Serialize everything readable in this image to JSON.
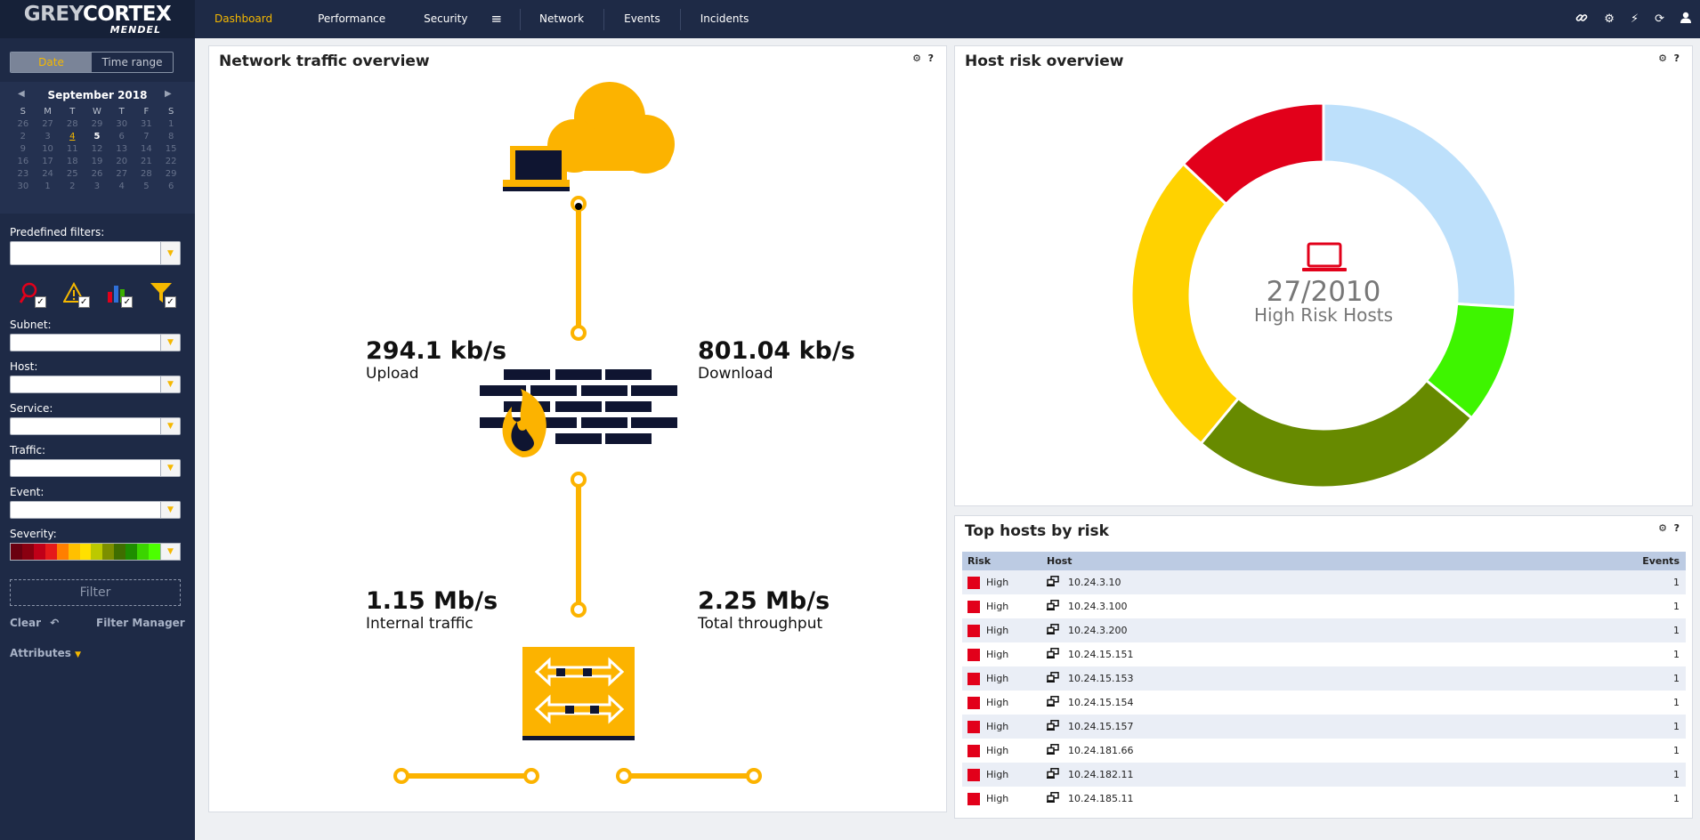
{
  "brand": {
    "line1_a": "GREY",
    "line1_b": "CORTEX",
    "line2": "MENDEL"
  },
  "nav": {
    "items": [
      "Dashboard",
      "Performance",
      "Security",
      "Network",
      "Events",
      "Incidents"
    ],
    "active": "Dashboard",
    "menu_icon": "hamburger-icon",
    "right_icons": [
      "link-icon",
      "settings-icon",
      "lightning-icon",
      "refresh-icon",
      "user-icon"
    ]
  },
  "sidebar": {
    "date_toggle": {
      "date": "Date",
      "time_range": "Time range",
      "active": "Date"
    },
    "calendar": {
      "month": "September 2018",
      "weekdays": [
        "S",
        "M",
        "T",
        "W",
        "T",
        "F",
        "S"
      ],
      "days": [
        "26",
        "27",
        "28",
        "29",
        "30",
        "31",
        "1",
        "2",
        "3",
        "4",
        "5",
        "6",
        "7",
        "8",
        "9",
        "10",
        "11",
        "12",
        "13",
        "14",
        "15",
        "16",
        "17",
        "18",
        "19",
        "20",
        "21",
        "22",
        "23",
        "24",
        "25",
        "26",
        "27",
        "28",
        "29",
        "30",
        "1",
        "2",
        "3",
        "4",
        "5",
        "6"
      ],
      "today": "4",
      "selected": "5"
    },
    "predefined_filters_label": "Predefined filters:",
    "filter_icons": [
      "host-search-icon",
      "warning-icon",
      "chart-icon",
      "funnel-icon"
    ],
    "subnet_label": "Subnet:",
    "host_label": "Host:",
    "service_label": "Service:",
    "traffic_label": "Traffic:",
    "event_label": "Event:",
    "severity_label": "Severity:",
    "severity_colors": [
      "#6a0010",
      "#8a0010",
      "#c00018",
      "#e51a1a",
      "#ff7f00",
      "#ffc000",
      "#ffe000",
      "#bcc900",
      "#7c8f00",
      "#3f6e00",
      "#1e8e00",
      "#3bd400",
      "#4cff00"
    ],
    "filter_button": "Filter",
    "clear_label": "Clear",
    "filter_manager_label": "Filter Manager",
    "attributes_label": "Attributes"
  },
  "traffic_panel": {
    "title": "Network traffic overview",
    "upload": {
      "value": "294.1 kb/s",
      "label": "Upload"
    },
    "download": {
      "value": "801.04 kb/s",
      "label": "Download"
    },
    "internal": {
      "value": "1.15 Mb/s",
      "label": "Internal traffic"
    },
    "total": {
      "value": "2.25 Mb/s",
      "label": "Total throughput"
    }
  },
  "risk_panel": {
    "title": "Host risk overview",
    "fraction": "27/2010",
    "center_label": "High Risk Hosts",
    "center_icon": "laptop-icon"
  },
  "chart_data": {
    "type": "pie",
    "title": "Host risk overview",
    "series": [
      {
        "color": "#bde0fb",
        "value": 26
      },
      {
        "color": "#3ef500",
        "value": 10
      },
      {
        "color": "#678a00",
        "value": 25
      },
      {
        "color": "#ffd200",
        "value": 26
      },
      {
        "color": "#e2001a",
        "value": 13
      }
    ]
  },
  "top_hosts": {
    "title": "Top hosts by risk",
    "columns": [
      "Risk",
      "Host",
      "Events"
    ],
    "rows": [
      {
        "risk": "High",
        "host": "10.24.3.10",
        "events": "1"
      },
      {
        "risk": "High",
        "host": "10.24.3.100",
        "events": "1"
      },
      {
        "risk": "High",
        "host": "10.24.3.200",
        "events": "1"
      },
      {
        "risk": "High",
        "host": "10.24.15.151",
        "events": "1"
      },
      {
        "risk": "High",
        "host": "10.24.15.153",
        "events": "1"
      },
      {
        "risk": "High",
        "host": "10.24.15.154",
        "events": "1"
      },
      {
        "risk": "High",
        "host": "10.24.15.157",
        "events": "1"
      },
      {
        "risk": "High",
        "host": "10.24.181.66",
        "events": "1"
      },
      {
        "risk": "High",
        "host": "10.24.182.11",
        "events": "1"
      },
      {
        "risk": "High",
        "host": "10.24.185.11",
        "events": "1"
      }
    ]
  },
  "colors": {
    "accent": "#f5b800",
    "nav_bg": "#1e2a46",
    "high_risk": "#e2001a"
  }
}
